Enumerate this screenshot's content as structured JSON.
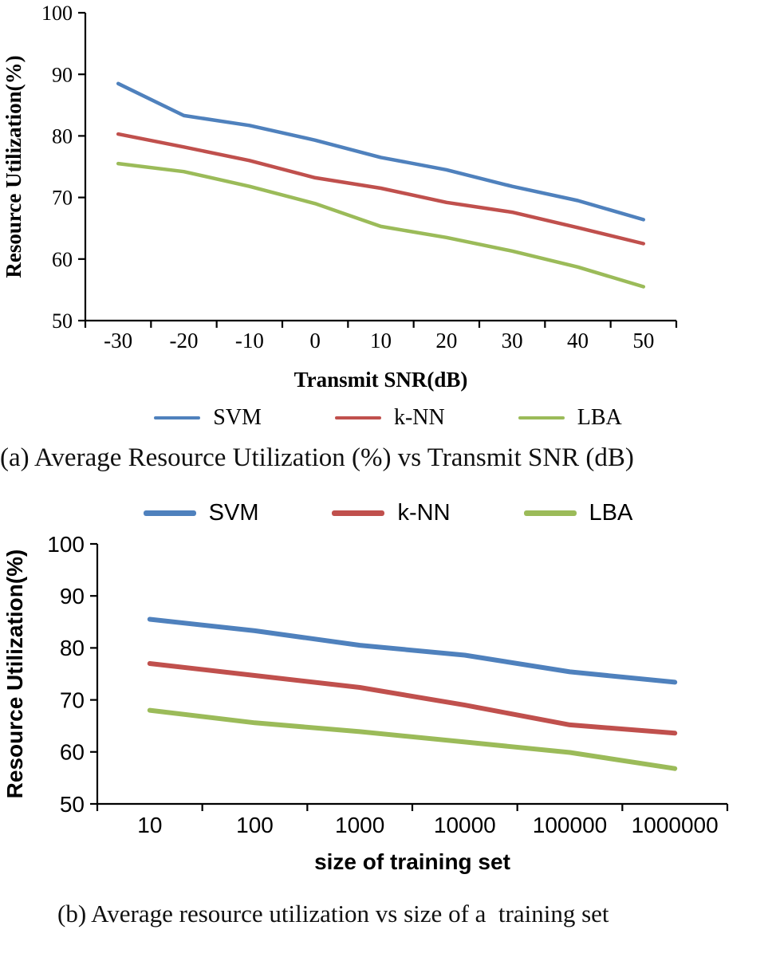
{
  "chart_data": [
    {
      "type": "line",
      "xlabel": "Transmit SNR(dB)",
      "ylabel": "Resource Utilization(%)",
      "x_labels": [
        "-30",
        "-20",
        "-10",
        "0",
        "10",
        "20",
        "30",
        "40",
        "50"
      ],
      "ylim": [
        50,
        100
      ],
      "yticks": [
        50,
        60,
        70,
        80,
        90,
        100
      ],
      "grid": false,
      "legend_position": "bottom",
      "series": [
        {
          "name": "SVM",
          "color": "#4F81BD",
          "values": [
            88.5,
            83.3,
            81.7,
            79.3,
            76.5,
            74.5,
            71.8,
            69.5,
            66.4
          ]
        },
        {
          "name": "k-NN",
          "color": "#C0504D",
          "values": [
            80.3,
            78.2,
            76.0,
            73.2,
            71.5,
            69.2,
            67.6,
            65.1,
            62.5
          ]
        },
        {
          "name": "LBA",
          "color": "#9BBB59",
          "values": [
            75.5,
            74.2,
            71.8,
            69.0,
            65.3,
            63.5,
            61.3,
            58.7,
            55.5
          ]
        }
      ],
      "caption": "(a) Average Resource Utilization (%) vs Transmit SNR (dB)"
    },
    {
      "type": "line",
      "xlabel": "size of training set",
      "ylabel": "Resource Utilization(%)",
      "x_labels": [
        "10",
        "100",
        "1000",
        "10000",
        "100000",
        "1000000"
      ],
      "ylim": [
        50,
        100
      ],
      "yticks": [
        50,
        60,
        70,
        80,
        90,
        100
      ],
      "grid": false,
      "legend_position": "top",
      "series": [
        {
          "name": "SVM",
          "color": "#4F81BD",
          "values": [
            85.5,
            83.3,
            80.5,
            78.6,
            75.4,
            73.4
          ]
        },
        {
          "name": "k-NN",
          "color": "#C0504D",
          "values": [
            77.0,
            74.7,
            72.4,
            69.0,
            65.2,
            63.6
          ]
        },
        {
          "name": "LBA",
          "color": "#9BBB59",
          "values": [
            68.0,
            65.6,
            63.9,
            61.9,
            59.9,
            56.8
          ]
        }
      ],
      "caption": "(b) Average resource utilization vs size of a  training set"
    }
  ]
}
